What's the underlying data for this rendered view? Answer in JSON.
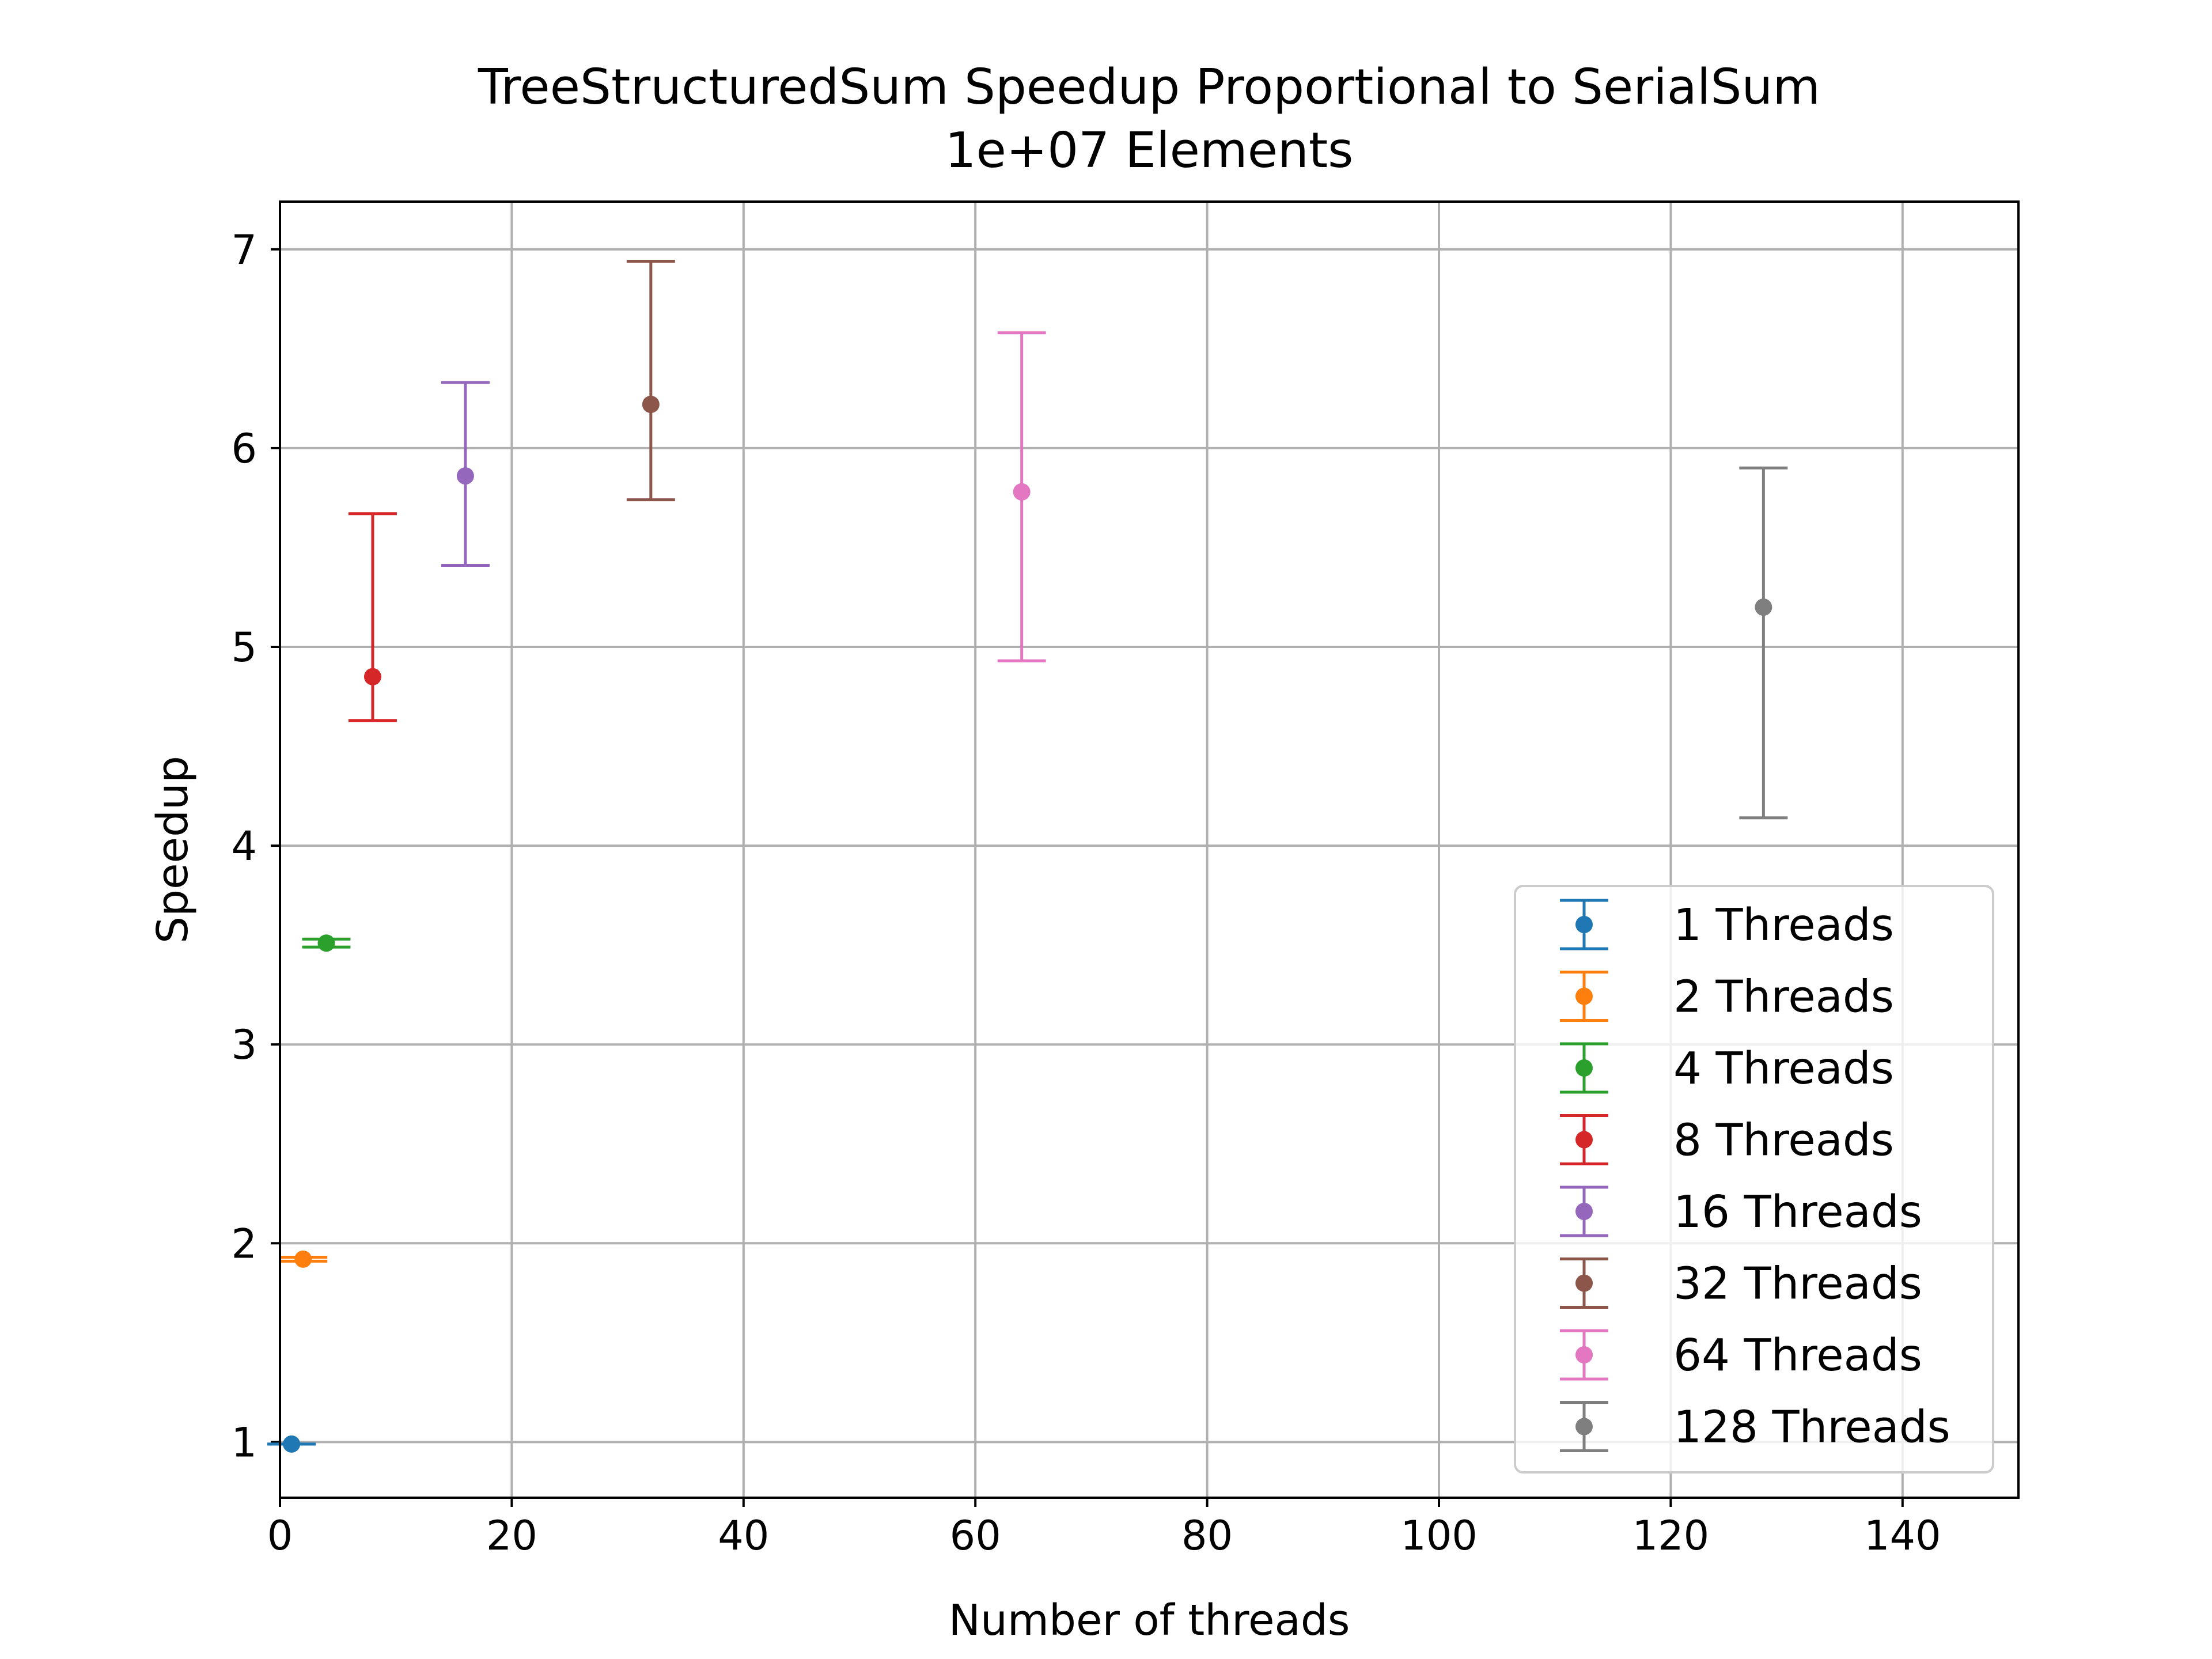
{
  "chart_data": {
    "type": "errorbar",
    "title": "TreeStructuredSum Speedup Proportional to SerialSum",
    "subtitle": "1e+07 Elements",
    "xlabel": "Number of threads",
    "ylabel": "Speedup",
    "xlim": [
      0,
      150
    ],
    "ylim": [
      0.72,
      7.24
    ],
    "xticks": [
      0,
      20,
      40,
      60,
      80,
      100,
      120,
      140
    ],
    "yticks": [
      1,
      2,
      3,
      4,
      5,
      6,
      7
    ],
    "grid": true,
    "legend_position": "lower right",
    "series": [
      {
        "name": "1 Threads",
        "x": 1,
        "y": 0.99,
        "yerr_low": 0.99,
        "yerr_high": 0.99,
        "color": "#1f77b4"
      },
      {
        "name": "2 Threads",
        "x": 2,
        "y": 1.92,
        "yerr_low": 1.91,
        "yerr_high": 1.93,
        "color": "#ff7f0e"
      },
      {
        "name": "4 Threads",
        "x": 4,
        "y": 3.51,
        "yerr_low": 3.49,
        "yerr_high": 3.53,
        "color": "#2ca02c"
      },
      {
        "name": "8 Threads",
        "x": 8,
        "y": 4.85,
        "yerr_low": 4.63,
        "yerr_high": 5.67,
        "color": "#d62728"
      },
      {
        "name": "16 Threads",
        "x": 16,
        "y": 5.86,
        "yerr_low": 5.41,
        "yerr_high": 6.33,
        "color": "#9467bd"
      },
      {
        "name": "32 Threads",
        "x": 32,
        "y": 6.22,
        "yerr_low": 5.74,
        "yerr_high": 6.94,
        "color": "#8c564b"
      },
      {
        "name": "64 Threads",
        "x": 64,
        "y": 5.78,
        "yerr_low": 4.93,
        "yerr_high": 6.58,
        "color": "#e377c2"
      },
      {
        "name": "128 Threads",
        "x": 128,
        "y": 5.2,
        "yerr_low": 4.14,
        "yerr_high": 5.9,
        "color": "#7f7f7f"
      }
    ]
  }
}
